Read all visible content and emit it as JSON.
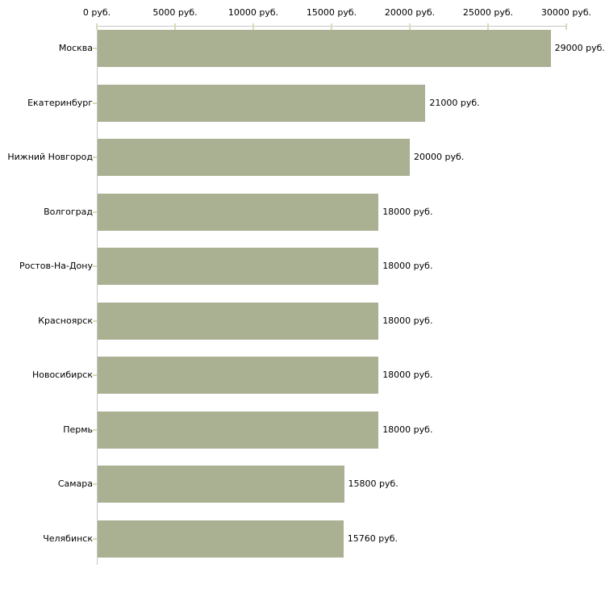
{
  "chart_data": {
    "type": "bar",
    "orientation": "horizontal",
    "title": "",
    "xlabel": "",
    "ylabel": "",
    "unit": "руб.",
    "xlim": [
      0,
      30000
    ],
    "grid": false,
    "legend": "none",
    "categories": [
      "Москва",
      "Екатеринбург",
      "Нижний Новгород",
      "Волгоград",
      "Ростов-На-Дону",
      "Красноярск",
      "Новосибирск",
      "Пермь",
      "Самара",
      "Челябинск"
    ],
    "values": [
      29000,
      21000,
      20000,
      18000,
      18000,
      18000,
      18000,
      18000,
      15800,
      15760
    ],
    "value_labels": [
      "29000 руб.",
      "21000 руб.",
      "20000 руб.",
      "18000 руб.",
      "18000 руб.",
      "18000 руб.",
      "18000 руб.",
      "18000 руб.",
      "15800 руб.",
      "15760 руб."
    ],
    "x_ticks": [
      0,
      5000,
      10000,
      15000,
      20000,
      25000,
      30000
    ],
    "x_tick_labels": [
      "0 руб.",
      "5000 руб.",
      "10000 руб.",
      "15000 руб.",
      "20000 руб.",
      "25000 руб.",
      "30000 руб."
    ],
    "colors": {
      "bar": "#aab092",
      "axis_line": "#c6c6c6",
      "tick_mark": "#d9dbb5",
      "text": "#000000",
      "background": "#ffffff"
    }
  }
}
